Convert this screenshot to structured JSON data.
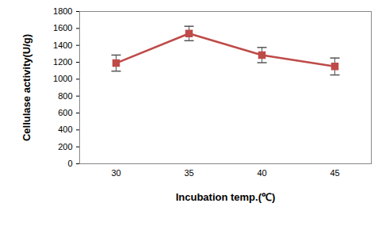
{
  "chart_data": {
    "type": "line",
    "x_label": "Incubation temp.(℃)",
    "y_label": "Cellulase activity(U/g)",
    "categories": [
      "30",
      "35",
      "40",
      "45"
    ],
    "values": [
      1190,
      1540,
      1285,
      1150
    ],
    "errors": [
      95,
      85,
      90,
      100
    ],
    "color": "#be4b48",
    "marker": "square",
    "ylim": [
      0,
      1800
    ],
    "yticks": [
      0,
      200,
      400,
      600,
      800,
      1000,
      1200,
      1400,
      1600,
      1800
    ],
    "grid": false
  }
}
